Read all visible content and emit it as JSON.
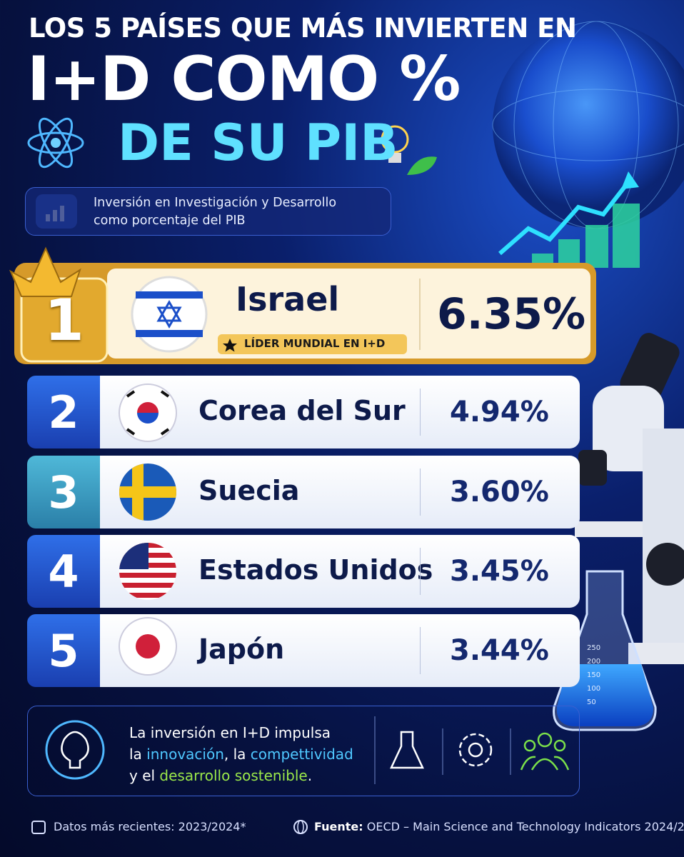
{
  "header": {
    "title_line1": "LOS 5 PAÍSES QUE MÁS INVIERTEN EN",
    "title_line2": "I+D COMO %",
    "title_line3": "DE SU PIB",
    "subtitle": [
      "Inversión en Investigación y Desarrollo",
      "como porcentaje del PIB"
    ]
  },
  "ranking": [
    {
      "rank": "1",
      "country": "Israel",
      "badge": "LÍDER MUNDIAL EN I+D",
      "value": "6.35%"
    },
    {
      "rank": "2",
      "country": "Corea del Sur",
      "value": "4.94%"
    },
    {
      "rank": "3",
      "country": "Suecia",
      "value": "3.60%"
    },
    {
      "rank": "4",
      "country": "Estados Unidos",
      "value": "3.45%"
    },
    {
      "rank": "5",
      "country": "Japón",
      "value": "3.44%"
    }
  ],
  "flask_scale": [
    "250",
    "200",
    "150",
    "100",
    "50"
  ],
  "message": {
    "line1": "La inversión en I+D impulsa",
    "line2_a": "la ",
    "line2_b": "innovación",
    "line2_c": ", la ",
    "line2_d": "compettividad",
    "line3_a": "y el ",
    "line3_b": "desarrollo sostenible",
    "line3_c": "."
  },
  "footer": {
    "date": "Datos más recientes: 2023/2024*",
    "source_label": "Fuente:",
    "source": "OECD – Main Science and Technology Indicators 2024/2"
  }
}
